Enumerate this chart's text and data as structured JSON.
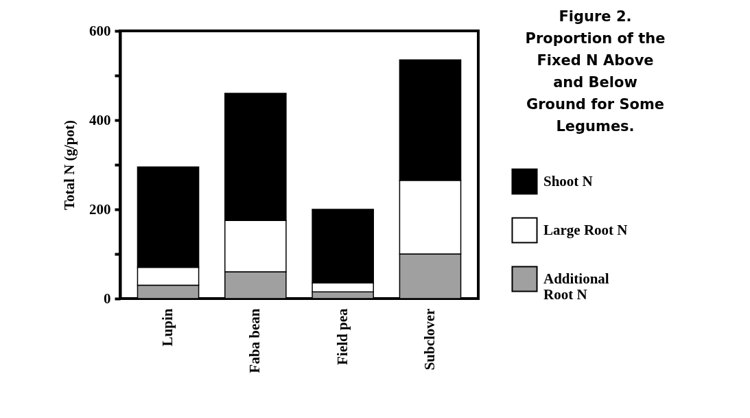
{
  "chart_data": {
    "type": "bar",
    "title": "Figure 2. Proportion of the Fixed N Above and Below Ground for Some Legumes.",
    "ylabel": "Total N (g/pot)",
    "categories": [
      "Lupin",
      "Faba bean",
      "Field pea",
      "Subclover"
    ],
    "stacked": true,
    "series": [
      {
        "name": "Additional Root N",
        "color": "#a0a0a0",
        "values": [
          30,
          60,
          15,
          100
        ]
      },
      {
        "name": "Large Root N",
        "color": "#ffffff",
        "values": [
          40,
          115,
          20,
          165
        ]
      },
      {
        "name": "Shoot N",
        "color": "#000000",
        "values": [
          225,
          285,
          165,
          270
        ]
      }
    ],
    "ylim": [
      0,
      600
    ],
    "yticks": [
      0,
      {
        "value": 100,
        "label": null
      },
      200,
      {
        "value": 300,
        "label": null
      },
      400,
      {
        "value": 500,
        "label": null
      },
      600
    ],
    "grid": false,
    "legend": "right"
  }
}
